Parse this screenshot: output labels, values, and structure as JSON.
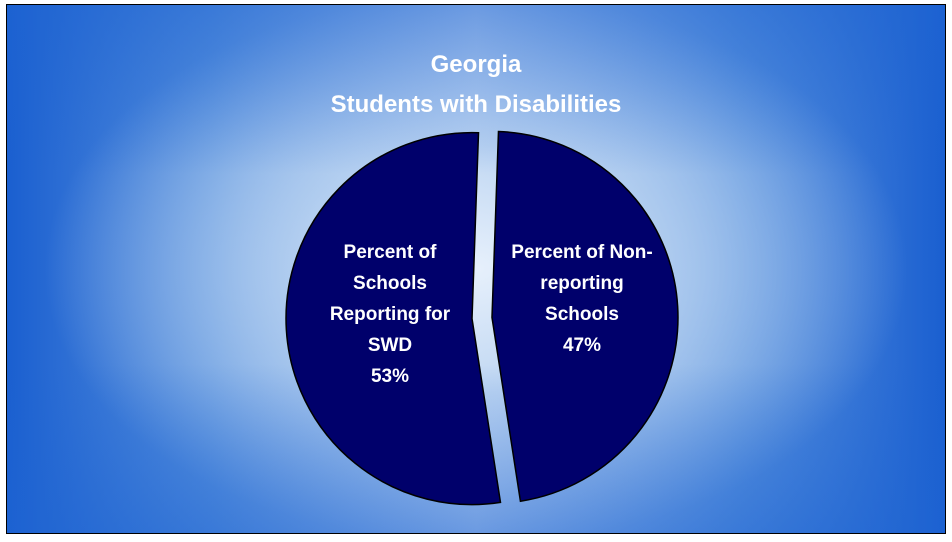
{
  "chart_data": {
    "type": "pie",
    "title": "Georgia",
    "subtitle": "Students with Disabilities",
    "slices": [
      {
        "label_lines": [
          "Percent of",
          "Schools",
          "Reporting for",
          "SWD"
        ],
        "percent_label": "53%",
        "value": 53,
        "color": "#00006b"
      },
      {
        "label_lines": [
          "Percent of Non-",
          "reporting",
          "Schools"
        ],
        "percent_label": "47%",
        "value": 47,
        "color": "#00006b"
      }
    ]
  }
}
